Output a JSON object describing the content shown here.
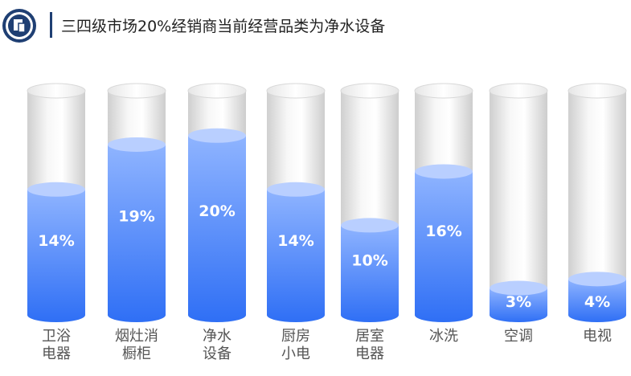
{
  "header": {
    "title": "三四级市场20%经销商当前经营品类为净水设备",
    "logo_icon": "document-badge-icon",
    "accent_color": "#1f3f73"
  },
  "chart_data": {
    "type": "bar",
    "style": "cylinder",
    "categories": [
      "卫浴\n电器",
      "烟灶消\n橱柜",
      "净水\n设备",
      "厨房\n小电",
      "居室\n电器",
      "冰洗",
      "空调",
      "电视"
    ],
    "values": [
      14,
      19,
      20,
      14,
      10,
      16,
      3,
      4
    ],
    "value_labels": [
      "14%",
      "19%",
      "20%",
      "14%",
      "10%",
      "16%",
      "3%",
      "4%"
    ],
    "ylim": [
      0,
      25
    ],
    "fill_color": "#3a7bff",
    "empty_color": "#e8e8e8",
    "grid": false
  }
}
